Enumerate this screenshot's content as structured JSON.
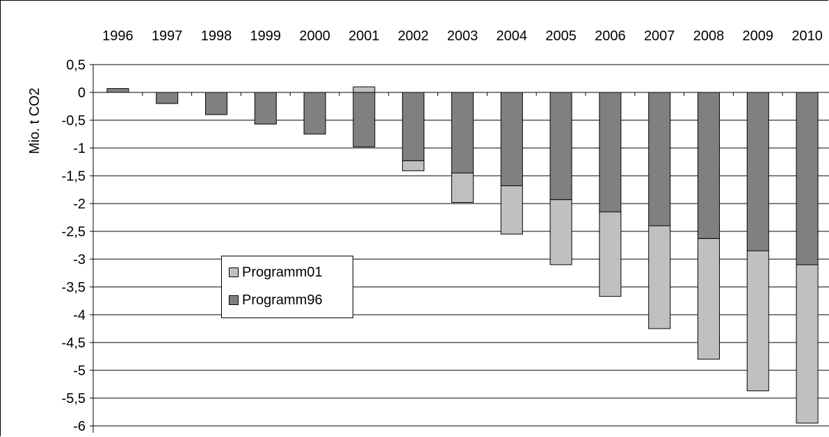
{
  "chart_data": {
    "type": "bar",
    "stacked": true,
    "categories": [
      "1996",
      "1997",
      "1998",
      "1999",
      "2000",
      "2001",
      "2002",
      "2003",
      "2004",
      "2005",
      "2006",
      "2007",
      "2008",
      "2009",
      "2010"
    ],
    "series": [
      {
        "name": "Programm96",
        "color": "#808080",
        "values": [
          0.07,
          -0.2,
          -0.4,
          -0.57,
          -0.75,
          -0.98,
          -1.23,
          -1.45,
          -1.68,
          -1.93,
          -2.15,
          -2.4,
          -2.63,
          -2.85,
          -3.1
        ]
      },
      {
        "name": "Programm01",
        "color": "#c0c0c0",
        "values": [
          0,
          0,
          0,
          0,
          0,
          0.1,
          -0.18,
          -0.53,
          -0.87,
          -1.17,
          -1.52,
          -1.85,
          -2.17,
          -2.52,
          -2.85
        ]
      }
    ],
    "ylabel": "Mio. t CO2",
    "xlabel": "",
    "ylim": [
      -6,
      0.5
    ],
    "yticks": [
      "0,5",
      "0",
      "-0,5",
      "-1",
      "-1,5",
      "-2",
      "-2,5",
      "-3",
      "-3,5",
      "-4",
      "-4,5",
      "-5",
      "-5,5",
      "-6"
    ],
    "x_axis_labels_position": "top",
    "grid": true,
    "legend_position": "middle-left",
    "legend_order": [
      "Programm01",
      "Programm96"
    ]
  }
}
